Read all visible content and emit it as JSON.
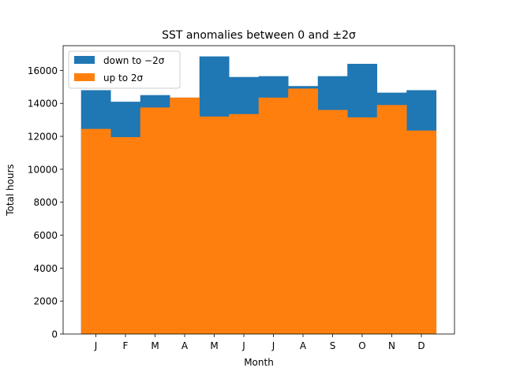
{
  "chart_data": {
    "type": "bar",
    "title": "SST anomalies between 0 and ±2σ",
    "xlabel": "Month",
    "ylabel": "Total hours",
    "categories": [
      "J",
      "F",
      "M",
      "A",
      "M",
      "J",
      "J",
      "A",
      "S",
      "O",
      "N",
      "D"
    ],
    "ylim": [
      0,
      17500
    ],
    "yticks": [
      0,
      2000,
      4000,
      6000,
      8000,
      10000,
      12000,
      14000,
      16000
    ],
    "grid": false,
    "legend_position": "top-left",
    "overlay": true,
    "series": [
      {
        "name": "down to −2σ",
        "color": "#1f77b4",
        "values": [
          14800,
          14100,
          14500,
          14350,
          16850,
          15600,
          15650,
          15050,
          15650,
          16400,
          14650,
          14800
        ]
      },
      {
        "name": "up to 2σ",
        "color": "#ff7f0e",
        "values": [
          12450,
          11950,
          13750,
          14350,
          13200,
          13350,
          14350,
          14900,
          13600,
          13150,
          13900,
          12350
        ]
      }
    ]
  }
}
